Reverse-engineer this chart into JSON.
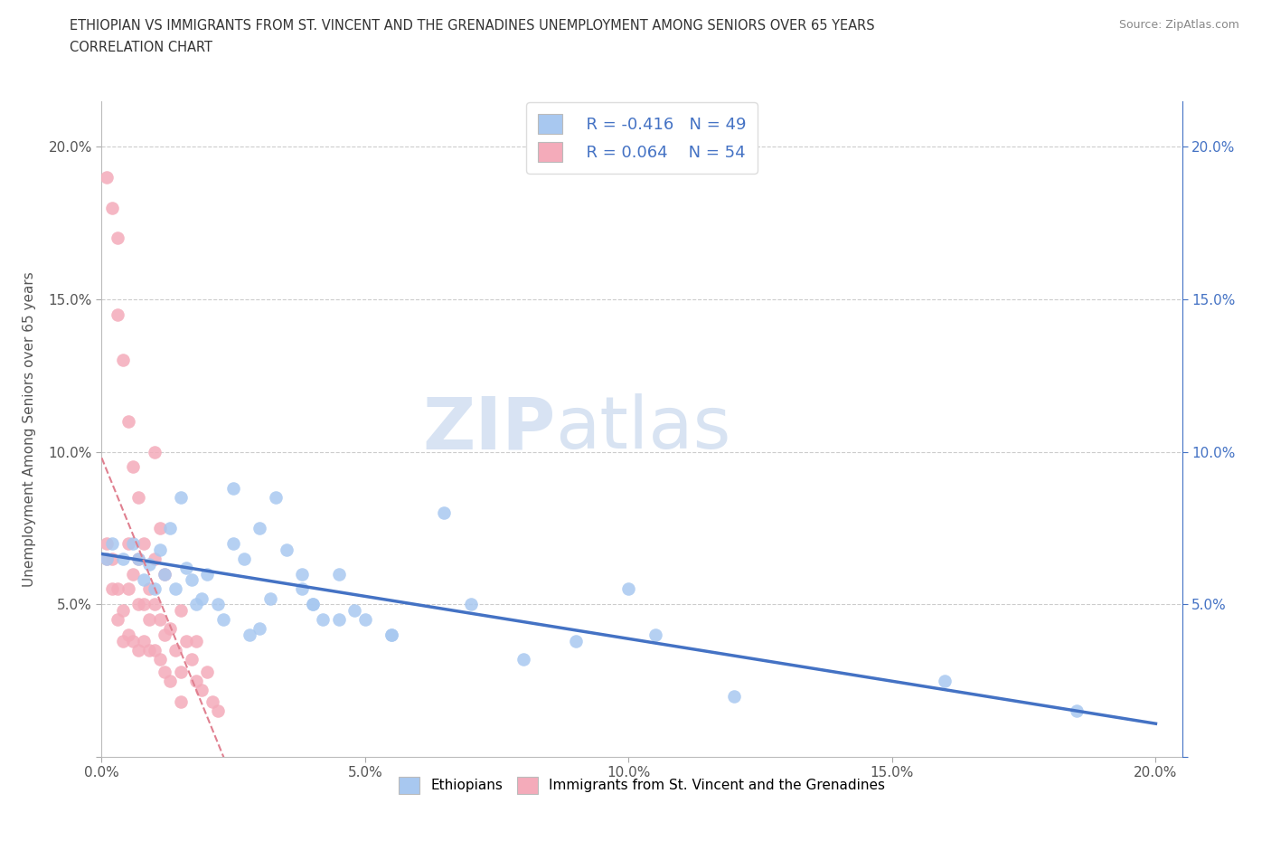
{
  "title_line1": "ETHIOPIAN VS IMMIGRANTS FROM ST. VINCENT AND THE GRENADINES UNEMPLOYMENT AMONG SENIORS OVER 65 YEARS",
  "title_line2": "CORRELATION CHART",
  "source": "Source: ZipAtlas.com",
  "ylabel": "Unemployment Among Seniors over 65 years",
  "watermark_zip": "ZIP",
  "watermark_atlas": "atlas",
  "legend_label1": "Ethiopians",
  "legend_label2": "Immigrants from St. Vincent and the Grenadines",
  "R1": -0.416,
  "N1": 49,
  "R2": 0.064,
  "N2": 54,
  "color_blue": "#A8C8F0",
  "color_pink": "#F4ABBA",
  "trendline_blue": "#4472C4",
  "trendline_pink": "#E08090",
  "ethiopians_x": [
    0.001,
    0.002,
    0.004,
    0.006,
    0.007,
    0.008,
    0.009,
    0.01,
    0.011,
    0.012,
    0.013,
    0.014,
    0.015,
    0.016,
    0.017,
    0.018,
    0.019,
    0.02,
    0.022,
    0.023,
    0.025,
    0.027,
    0.028,
    0.03,
    0.032,
    0.033,
    0.035,
    0.038,
    0.04,
    0.042,
    0.045,
    0.048,
    0.05,
    0.055,
    0.025,
    0.03,
    0.038,
    0.04,
    0.045,
    0.055,
    0.065,
    0.07,
    0.08,
    0.09,
    0.1,
    0.105,
    0.12,
    0.16,
    0.185
  ],
  "ethiopians_y": [
    0.065,
    0.07,
    0.065,
    0.07,
    0.065,
    0.058,
    0.063,
    0.055,
    0.068,
    0.06,
    0.075,
    0.055,
    0.085,
    0.062,
    0.058,
    0.05,
    0.052,
    0.06,
    0.05,
    0.045,
    0.07,
    0.065,
    0.04,
    0.042,
    0.052,
    0.085,
    0.068,
    0.055,
    0.05,
    0.045,
    0.06,
    0.048,
    0.045,
    0.04,
    0.088,
    0.075,
    0.06,
    0.05,
    0.045,
    0.04,
    0.08,
    0.05,
    0.032,
    0.038,
    0.055,
    0.04,
    0.02,
    0.025,
    0.015
  ],
  "svg_x": [
    0.001,
    0.001,
    0.002,
    0.002,
    0.003,
    0.003,
    0.004,
    0.004,
    0.005,
    0.005,
    0.005,
    0.006,
    0.006,
    0.007,
    0.007,
    0.007,
    0.008,
    0.008,
    0.009,
    0.009,
    0.01,
    0.01,
    0.01,
    0.011,
    0.011,
    0.012,
    0.012,
    0.013,
    0.013,
    0.014,
    0.015,
    0.015,
    0.016,
    0.017,
    0.018,
    0.018,
    0.019,
    0.02,
    0.021,
    0.022,
    0.001,
    0.002,
    0.003,
    0.003,
    0.004,
    0.005,
    0.006,
    0.007,
    0.008,
    0.009,
    0.01,
    0.011,
    0.012,
    0.015
  ],
  "svg_y": [
    0.065,
    0.07,
    0.065,
    0.055,
    0.055,
    0.045,
    0.048,
    0.038,
    0.07,
    0.055,
    0.04,
    0.06,
    0.038,
    0.065,
    0.05,
    0.035,
    0.05,
    0.038,
    0.045,
    0.035,
    0.065,
    0.05,
    0.035,
    0.045,
    0.032,
    0.04,
    0.028,
    0.042,
    0.025,
    0.035,
    0.048,
    0.028,
    0.038,
    0.032,
    0.025,
    0.038,
    0.022,
    0.028,
    0.018,
    0.015,
    0.19,
    0.18,
    0.17,
    0.145,
    0.13,
    0.11,
    0.095,
    0.085,
    0.07,
    0.055,
    0.1,
    0.075,
    0.06,
    0.018
  ],
  "xlim": [
    0.0,
    0.205
  ],
  "ylim": [
    0.0,
    0.215
  ],
  "xticks": [
    0.0,
    0.05,
    0.1,
    0.15,
    0.2
  ],
  "yticks": [
    0.0,
    0.05,
    0.1,
    0.15,
    0.2
  ],
  "xtick_labels": [
    "0.0%",
    "5.0%",
    "10.0%",
    "15.0%",
    "20.0%"
  ],
  "ytick_labels_left": [
    "",
    "5.0%",
    "10.0%",
    "15.0%",
    "20.0%"
  ],
  "ytick_labels_right": [
    "",
    "5.0%",
    "10.0%",
    "15.0%",
    "20.0%"
  ]
}
